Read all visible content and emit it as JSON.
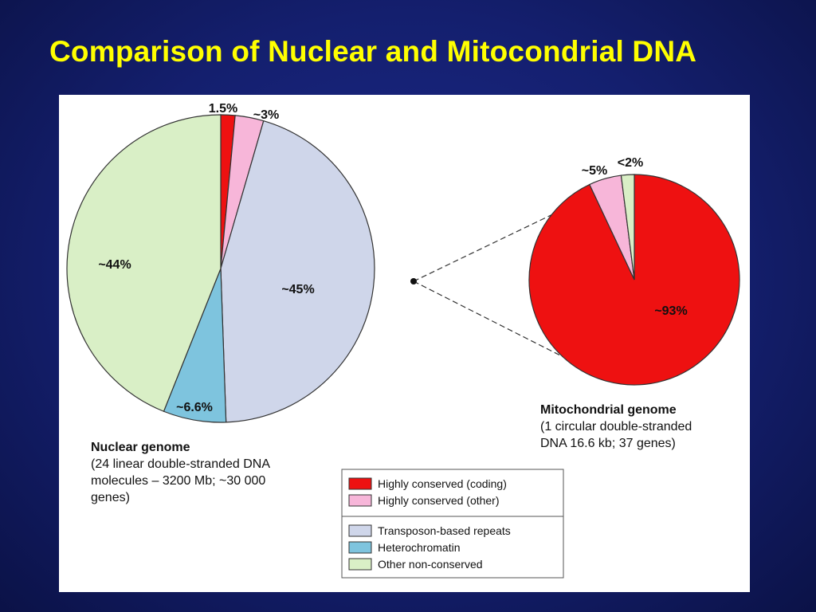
{
  "slide": {
    "title": "Comparison of Nuclear and Mitocondrial DNA"
  },
  "colors": {
    "background": "#141f6e",
    "title": "#ffff00",
    "highly_conserved_coding": "#ee1111",
    "highly_conserved_other": "#f7b6d9",
    "transposon_repeats": "#cfd6ea",
    "heterochromatin": "#7ec4de",
    "other_non_conserved": "#d9efc6"
  },
  "chart_data": [
    {
      "type": "pie",
      "name": "nuclear",
      "slices": [
        {
          "label": "1.5%",
          "value": 1.5,
          "category": "Highly conserved (coding)"
        },
        {
          "label": "~3%",
          "value": 3,
          "category": "Highly conserved (other)"
        },
        {
          "label": "~45%",
          "value": 45,
          "category": "Transposon-based repeats"
        },
        {
          "label": "~6.6%",
          "value": 6.6,
          "category": "Heterochromatin"
        },
        {
          "label": "~44%",
          "value": 44,
          "category": "Other non-conserved"
        }
      ],
      "caption_title": "Nuclear genome",
      "caption_lines": [
        "(24 linear double-stranded DNA",
        "molecules – 3200 Mb; ~30 000",
        "genes)"
      ]
    },
    {
      "type": "pie",
      "name": "mitochondrial",
      "slices": [
        {
          "label": "~93%",
          "value": 93,
          "category": "Highly conserved (coding)"
        },
        {
          "label": "~5%",
          "value": 5,
          "category": "Highly conserved (other)"
        },
        {
          "label": "<2%",
          "value": 2,
          "category": "Other non-conserved"
        }
      ],
      "caption_title": "Mitochondrial genome",
      "caption_lines": [
        "(1 circular double-stranded",
        "DNA 16.6 kb; 37 genes)"
      ]
    }
  ],
  "legend": {
    "group1": [
      {
        "label": "Highly conserved (coding)",
        "color": "#ee1111"
      },
      {
        "label": "Highly conserved (other)",
        "color": "#f7b6d9"
      }
    ],
    "group2": [
      {
        "label": "Transposon-based repeats",
        "color": "#cfd6ea"
      },
      {
        "label": "Heterochromatin",
        "color": "#7ec4de"
      },
      {
        "label": "Other non-conserved",
        "color": "#d9efc6"
      }
    ]
  }
}
